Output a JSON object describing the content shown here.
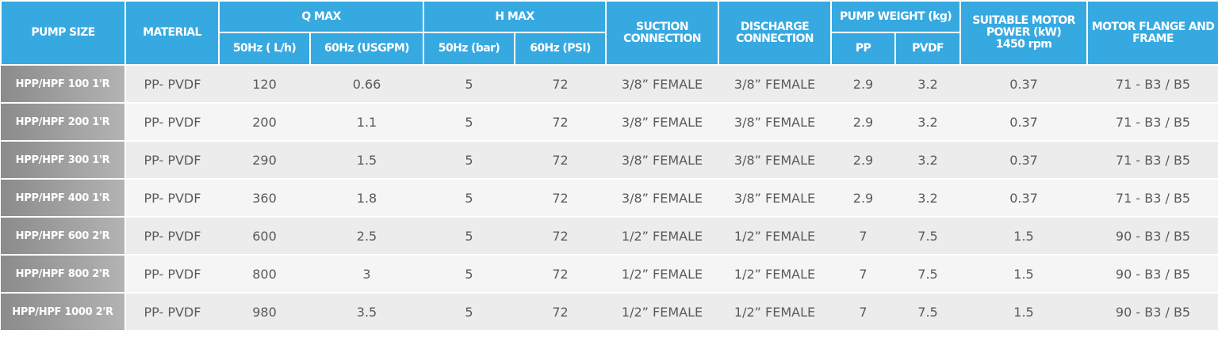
{
  "table": {
    "header": {
      "top": [
        "PUMP SIZE",
        "MATERIAL",
        "Q MAX",
        "H MAX",
        "SUCTION CONNECTION",
        "DISCHARGE CONNECTION",
        "PUMP WEIGHT (kg)",
        "SUITABLE MOTOR POWER (kW)",
        "MOTOR FLANGE AND FRAME"
      ],
      "motor_speed": "1450 rpm",
      "sub": [
        "50Hz ( L/h)",
        "60Hz (USGPM)",
        "50Hz (bar)",
        "60Hz (PSI)",
        "PP",
        "PVDF"
      ]
    },
    "rows": [
      [
        "HPP/HPF 100 1'R",
        "PP- PVDF",
        120,
        0.66,
        5,
        72,
        "3/8” FEMALE",
        "3/8” FEMALE",
        2.9,
        3.2,
        0.37,
        "71 - B3 / B5"
      ],
      [
        "HPP/HPF 200 1'R",
        "PP- PVDF",
        200,
        1.1,
        5,
        72,
        "3/8” FEMALE",
        "3/8” FEMALE",
        2.9,
        3.2,
        0.37,
        "71 - B3 / B5"
      ],
      [
        "HPP/HPF 300 1'R",
        "PP- PVDF",
        290,
        1.5,
        5,
        72,
        "3/8” FEMALE",
        "3/8” FEMALE",
        2.9,
        3.2,
        0.37,
        "71 - B3 / B5"
      ],
      [
        "HPP/HPF 400 1'R",
        "PP- PVDF",
        360,
        1.8,
        5,
        72,
        "3/8” FEMALE",
        "3/8” FEMALE",
        2.9,
        3.2,
        0.37,
        "71 - B3 / B5"
      ],
      [
        "HPP/HPF 600 2'R",
        "PP- PVDF",
        600,
        2.5,
        5,
        72,
        "1/2” FEMALE",
        "1/2” FEMALE",
        7,
        7.5,
        1.5,
        "90 - B3 / B5"
      ],
      [
        "HPP/HPF 800 2'R",
        "PP- PVDF",
        800,
        3,
        5,
        72,
        "1/2” FEMALE",
        "1/2” FEMALE",
        7,
        7.5,
        1.5,
        "90 - B3 / B5"
      ],
      [
        "HPP/HPF 1000 2'R",
        "PP- PVDF",
        980,
        3.5,
        5,
        72,
        "1/2” FEMALE",
        "1/2” FEMALE",
        7,
        7.5,
        1.5,
        "90 - B3 / B5"
      ]
    ]
  }
}
